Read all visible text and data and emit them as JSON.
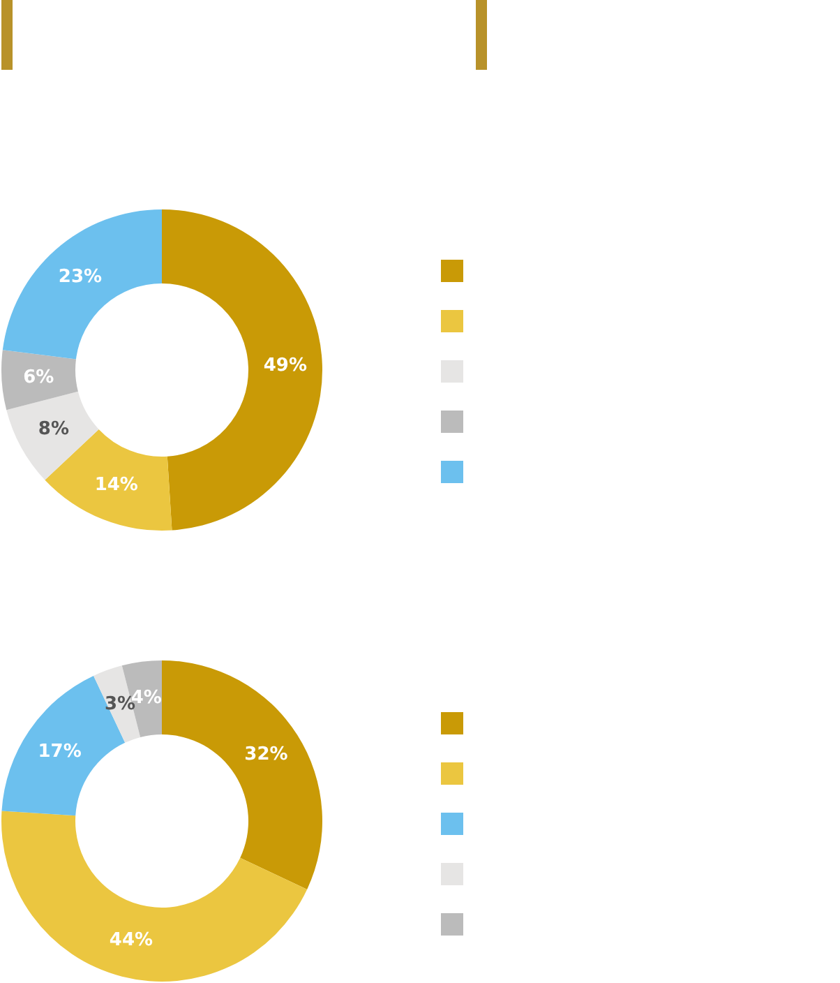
{
  "chart_data": [
    {
      "type": "donut",
      "categories": [
        null,
        null,
        null,
        null,
        null
      ],
      "values": [
        49,
        14,
        8,
        6,
        23
      ],
      "value_labels": [
        "49%",
        "14%",
        "8%",
        "6%",
        "23%"
      ],
      "colors": [
        "#c99a06",
        "#ebc640",
        "#e6e5e4",
        "#bbbbbb",
        "#6cc0ee"
      ]
    },
    {
      "type": "donut",
      "categories": [
        null,
        null,
        null,
        null,
        null
      ],
      "values": [
        32,
        44,
        17,
        3,
        4
      ],
      "value_labels": [
        "32%",
        "44%",
        "17%",
        "3%",
        "4%"
      ],
      "colors": [
        "#c99a06",
        "#ebc640",
        "#6cc0ee",
        "#e6e5e4",
        "#bbbbbb"
      ]
    }
  ]
}
